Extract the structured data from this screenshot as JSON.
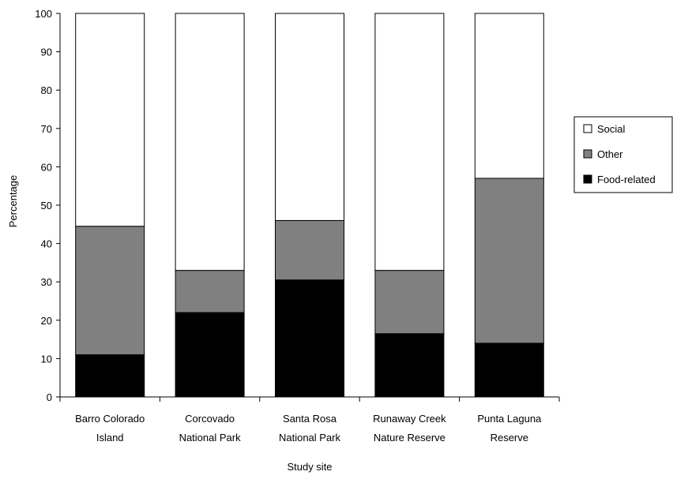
{
  "chart_data": {
    "type": "bar",
    "stacked": true,
    "normalized_percent": true,
    "xlabel": "Study site",
    "ylabel": "Percentage",
    "ylim": [
      0,
      100
    ],
    "yticks": [
      0,
      10,
      20,
      30,
      40,
      50,
      60,
      70,
      80,
      90,
      100
    ],
    "grid": false,
    "legend_position": "right",
    "categories": [
      [
        "Barro Colorado",
        "Island"
      ],
      [
        "Corcovado",
        "National Park"
      ],
      [
        "Santa Rosa",
        "National Park"
      ],
      [
        "Runaway Creek",
        "Nature Reserve"
      ],
      [
        "Punta Laguna",
        "Reserve"
      ]
    ],
    "series": [
      {
        "name": "Food-related",
        "color": "#000000",
        "values": [
          11,
          22,
          30.5,
          16.5,
          14
        ]
      },
      {
        "name": "Other",
        "color": "#808080",
        "values": [
          33.5,
          11,
          15.5,
          16.5,
          43
        ]
      },
      {
        "name": "Social",
        "color": "#ffffff",
        "values": [
          55.5,
          67,
          54,
          67,
          43
        ]
      }
    ],
    "legend_order": [
      "Social",
      "Other",
      "Food-related"
    ]
  }
}
